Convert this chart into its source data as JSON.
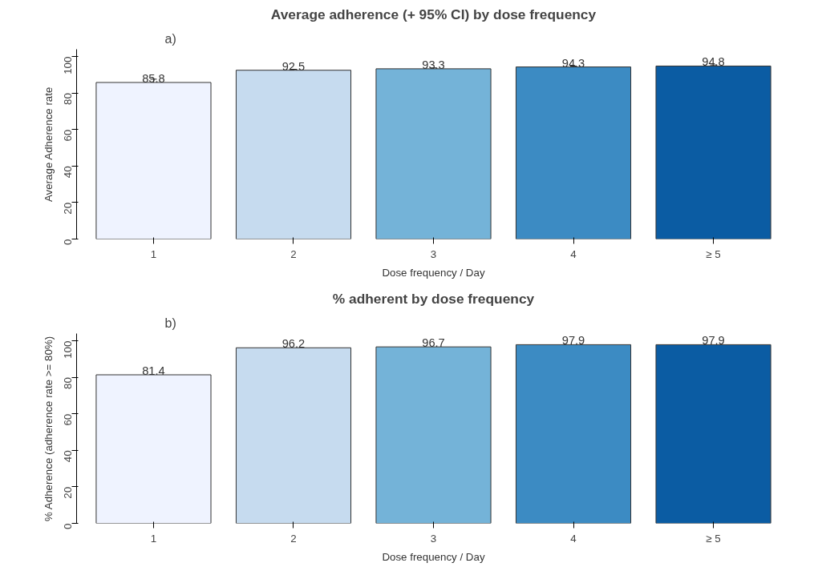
{
  "chart_data": [
    {
      "type": "bar",
      "title": "Average adherence (+ 95% CI) by dose frequency",
      "xlabel": "Dose frequency / Day",
      "ylabel": "Average Adherence rate",
      "annotations": [
        "a)"
      ],
      "categories": [
        "1",
        "2",
        "3",
        "4",
        "≥ 5"
      ],
      "values": [
        85.8,
        92.5,
        93.3,
        94.3,
        94.8
      ],
      "errors": [
        1.8,
        0.5,
        0.5,
        0.5,
        0.6
      ],
      "colors": [
        "#eff3ff",
        "#c6dbef",
        "#74b3d8",
        "#3c8bc3",
        "#0b5ca3"
      ],
      "ylim": [
        0,
        104
      ],
      "yticks": [
        0,
        20,
        40,
        60,
        80,
        100
      ],
      "data_labels": true,
      "grid": false
    },
    {
      "type": "bar",
      "title": "% adherent by dose frequency",
      "xlabel": "Dose frequency / Day",
      "ylabel": "% Adherence (adherence rate >= 80%)",
      "annotations": [
        "b)"
      ],
      "categories": [
        "1",
        "2",
        "3",
        "4",
        "≥ 5"
      ],
      "values": [
        81.4,
        96.2,
        96.7,
        97.9,
        97.9
      ],
      "colors": [
        "#eff3ff",
        "#c6dbef",
        "#74b3d8",
        "#3c8bc3",
        "#0b5ca3"
      ],
      "ylim": [
        0,
        104
      ],
      "yticks": [
        0,
        20,
        40,
        60,
        80,
        100
      ],
      "data_labels": true,
      "grid": false
    }
  ]
}
